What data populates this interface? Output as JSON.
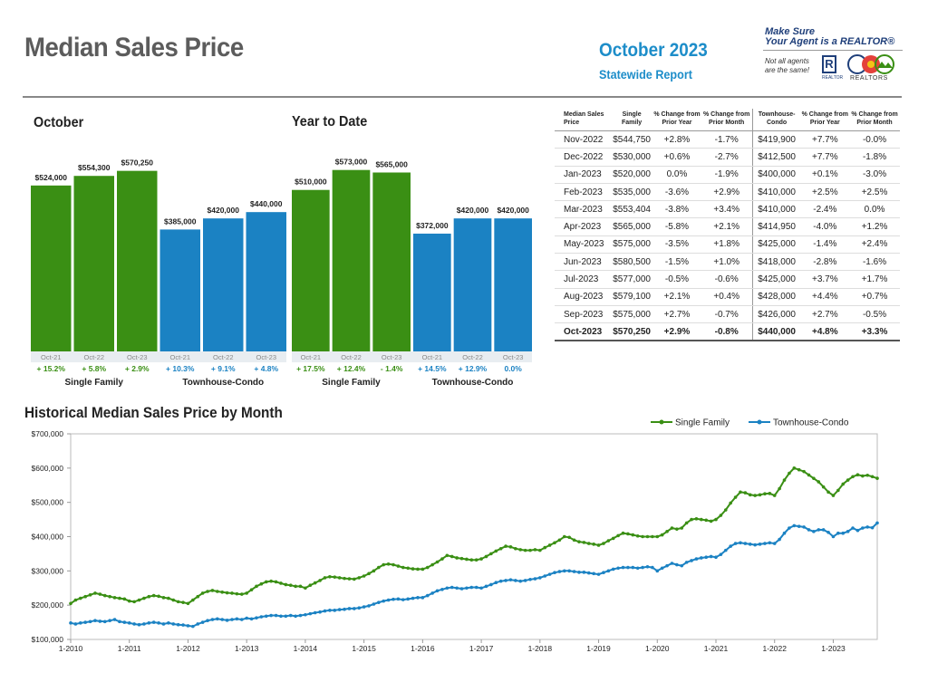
{
  "header": {
    "title": "Median Sales Price",
    "report_title": "October 2023",
    "report_subtitle": "Statewide Report"
  },
  "logo": {
    "line1": "Make Sure",
    "line2": "Your Agent is a REALTOR®",
    "note1": "Not all agents",
    "note2": "are the same!",
    "rmark": "R",
    "rmark_sub": "REALTOR",
    "org": "REALTORS"
  },
  "colors": {
    "single_family": "#3a8f14",
    "townhouse_condo": "#1b82c3"
  },
  "tables": {
    "columns": [
      "Median Sales Price",
      "Single Family",
      "% Change from Prior Year",
      "% Change from Prior Month",
      "Townhouse-Condo",
      "% Change from Prior Year",
      "% Change from Prior Month"
    ],
    "rows": [
      [
        "Nov-2022",
        "$544,750",
        "+2.8%",
        "-1.7%",
        "$419,900",
        "+7.7%",
        "-0.0%"
      ],
      [
        "Dec-2022",
        "$530,000",
        "+0.6%",
        "-2.7%",
        "$412,500",
        "+7.7%",
        "-1.8%"
      ],
      [
        "Jan-2023",
        "$520,000",
        "0.0%",
        "-1.9%",
        "$400,000",
        "+0.1%",
        "-3.0%"
      ],
      [
        "Feb-2023",
        "$535,000",
        "-3.6%",
        "+2.9%",
        "$410,000",
        "+2.5%",
        "+2.5%"
      ],
      [
        "Mar-2023",
        "$553,404",
        "-3.8%",
        "+3.4%",
        "$410,000",
        "-2.4%",
        "0.0%"
      ],
      [
        "Apr-2023",
        "$565,000",
        "-5.8%",
        "+2.1%",
        "$414,950",
        "-4.0%",
        "+1.2%"
      ],
      [
        "May-2023",
        "$575,000",
        "-3.5%",
        "+1.8%",
        "$425,000",
        "-1.4%",
        "+2.4%"
      ],
      [
        "Jun-2023",
        "$580,500",
        "-1.5%",
        "+1.0%",
        "$418,000",
        "-2.8%",
        "-1.6%"
      ],
      [
        "Jul-2023",
        "$577,000",
        "-0.5%",
        "-0.6%",
        "$425,000",
        "+3.7%",
        "+1.7%"
      ],
      [
        "Aug-2023",
        "$579,100",
        "+2.1%",
        "+0.4%",
        "$428,000",
        "+4.4%",
        "+0.7%"
      ],
      [
        "Sep-2023",
        "$575,000",
        "+2.7%",
        "-0.7%",
        "$426,000",
        "+2.7%",
        "-0.5%"
      ],
      [
        "Oct-2023",
        "$570,250",
        "+2.9%",
        "-0.8%",
        "$440,000",
        "+4.8%",
        "+3.3%"
      ]
    ]
  },
  "chart_data": [
    {
      "type": "bar",
      "title": "October",
      "groups": [
        {
          "name": "Single Family",
          "color": "#3a8f14",
          "categories": [
            "Oct-21",
            "Oct-22",
            "Oct-23"
          ],
          "values": [
            524000,
            554300,
            570250
          ],
          "labels": [
            "$524,000",
            "$554,300",
            "$570,250"
          ],
          "changes": [
            "+ 15.2%",
            "+ 5.8%",
            "+ 2.9%"
          ]
        },
        {
          "name": "Townhouse-Condo",
          "color": "#1b82c3",
          "categories": [
            "Oct-21",
            "Oct-22",
            "Oct-23"
          ],
          "values": [
            385000,
            420000,
            440000
          ],
          "labels": [
            "$385,000",
            "$420,000",
            "$440,000"
          ],
          "changes": [
            "+ 10.3%",
            "+ 9.1%",
            "+ 4.8%"
          ]
        }
      ]
    },
    {
      "type": "bar",
      "title": "Year to Date",
      "groups": [
        {
          "name": "Single Family",
          "color": "#3a8f14",
          "categories": [
            "Oct-21",
            "Oct-22",
            "Oct-23"
          ],
          "values": [
            510000,
            573000,
            565000
          ],
          "labels": [
            "$510,000",
            "$573,000",
            "$565,000"
          ],
          "changes": [
            "+ 17.5%",
            "+ 12.4%",
            "- 1.4%"
          ]
        },
        {
          "name": "Townhouse-Condo",
          "color": "#1b82c3",
          "categories": [
            "Oct-21",
            "Oct-22",
            "Oct-23"
          ],
          "values": [
            372000,
            420000,
            420000
          ],
          "labels": [
            "$372,000",
            "$420,000",
            "$420,000"
          ],
          "changes": [
            "+ 14.5%",
            "+ 12.9%",
            "0.0%"
          ]
        }
      ]
    },
    {
      "type": "line",
      "title": "Historical Median Sales Price by Month",
      "x_start": "1-2010",
      "x_end": "10-2023",
      "x_ticks": [
        "1-2010",
        "1-2011",
        "1-2012",
        "1-2013",
        "1-2014",
        "1-2015",
        "1-2016",
        "1-2017",
        "1-2018",
        "1-2019",
        "1-2020",
        "1-2021",
        "1-2022",
        "1-2023"
      ],
      "ylim": [
        100000,
        700000
      ],
      "y_ticks": [
        "$100,000",
        "$200,000",
        "$300,000",
        "$400,000",
        "$500,000",
        "$600,000",
        "$700,000"
      ],
      "legend_position": "top-right",
      "series": [
        {
          "name": "Single Family",
          "color": "#3a8f14",
          "yearly_values": [
            [
              205000,
              215000,
              220000,
              225000,
              230000,
              235000,
              232000,
              228000,
              225000,
              222000,
              220000,
              218000
            ],
            [
              212000,
              210000,
              215000,
              220000,
              225000,
              228000,
              226000,
              222000,
              220000,
              215000,
              210000,
              208000
            ],
            [
              205000,
              215000,
              225000,
              235000,
              240000,
              243000,
              240000,
              238000,
              236000,
              235000,
              233000,
              232000
            ],
            [
              235000,
              245000,
              255000,
              262000,
              268000,
              270000,
              268000,
              264000,
              260000,
              258000,
              255000,
              255000
            ],
            [
              250000,
              258000,
              265000,
              272000,
              280000,
              283000,
              282000,
              280000,
              278000,
              277000,
              276000,
              280000
            ],
            [
              285000,
              292000,
              300000,
              310000,
              318000,
              320000,
              318000,
              314000,
              310000,
              308000,
              306000,
              305000
            ],
            [
              305000,
              310000,
              318000,
              326000,
              335000,
              345000,
              342000,
              338000,
              336000,
              334000,
              332000,
              332000
            ],
            [
              335000,
              342000,
              350000,
              358000,
              365000,
              372000,
              370000,
              365000,
              362000,
              360000,
              360000,
              362000
            ],
            [
              360000,
              368000,
              375000,
              382000,
              390000,
              400000,
              398000,
              390000,
              385000,
              383000,
              380000,
              378000
            ],
            [
              375000,
              380000,
              388000,
              395000,
              403000,
              410000,
              408000,
              405000,
              402000,
              400000,
              400000,
              400000
            ],
            [
              400000,
              405000,
              415000,
              425000,
              422000,
              425000,
              440000,
              450000,
              452000,
              450000,
              448000,
              445000
            ],
            [
              450000,
              462000,
              478000,
              498000,
              515000,
              530000,
              528000,
              522000,
              520000,
              522000,
              525000,
              526000
            ],
            [
              520000,
              540000,
              565000,
              585000,
              600000,
              595000,
              590000,
              580000,
              570000,
              560000,
              545000,
              530000
            ],
            [
              520000,
              535000,
              553404,
              565000,
              575000,
              580500,
              577000,
              579100,
              575000,
              570250
            ]
          ]
        },
        {
          "name": "Townhouse-Condo",
          "color": "#1b82c3",
          "yearly_values": [
            [
              148000,
              145000,
              148000,
              150000,
              152000,
              155000,
              153000,
              152000,
              155000,
              158000,
              152000,
              150000
            ],
            [
              148000,
              145000,
              143000,
              145000,
              148000,
              150000,
              148000,
              145000,
              148000,
              145000,
              143000,
              142000
            ],
            [
              140000,
              138000,
              145000,
              150000,
              155000,
              158000,
              160000,
              158000,
              156000,
              158000,
              160000,
              158000
            ],
            [
              162000,
              160000,
              163000,
              166000,
              168000,
              170000,
              170000,
              168000,
              168000,
              170000,
              168000,
              170000
            ],
            [
              172000,
              175000,
              178000,
              180000,
              183000,
              185000,
              185000,
              187000,
              188000,
              190000,
              190000,
              192000
            ],
            [
              195000,
              198000,
              203000,
              208000,
              212000,
              215000,
              217000,
              218000,
              216000,
              218000,
              220000,
              222000
            ],
            [
              222000,
              228000,
              235000,
              242000,
              246000,
              250000,
              252000,
              250000,
              248000,
              250000,
              252000,
              252000
            ],
            [
              250000,
              255000,
              260000,
              266000,
              270000,
              272000,
              274000,
              272000,
              270000,
              272000,
              275000,
              277000
            ],
            [
              280000,
              285000,
              290000,
              295000,
              298000,
              300000,
              300000,
              298000,
              296000,
              296000,
              294000,
              292000
            ],
            [
              290000,
              295000,
              300000,
              305000,
              308000,
              310000,
              310000,
              310000,
              308000,
              310000,
              312000,
              310000
            ],
            [
              300000,
              308000,
              315000,
              322000,
              318000,
              315000,
              325000,
              330000,
              335000,
              338000,
              340000,
              342000
            ],
            [
              340000,
              348000,
              360000,
              372000,
              380000,
              382000,
              380000,
              378000,
              376000,
              378000,
              380000,
              382000
            ],
            [
              380000,
              392000,
              410000,
              425000,
              432000,
              430000,
              428000,
              420000,
              415000,
              420000,
              419900,
              412500
            ],
            [
              400000,
              410000,
              410000,
              414950,
              425000,
              418000,
              425000,
              428000,
              426000,
              440000
            ]
          ]
        }
      ]
    }
  ]
}
